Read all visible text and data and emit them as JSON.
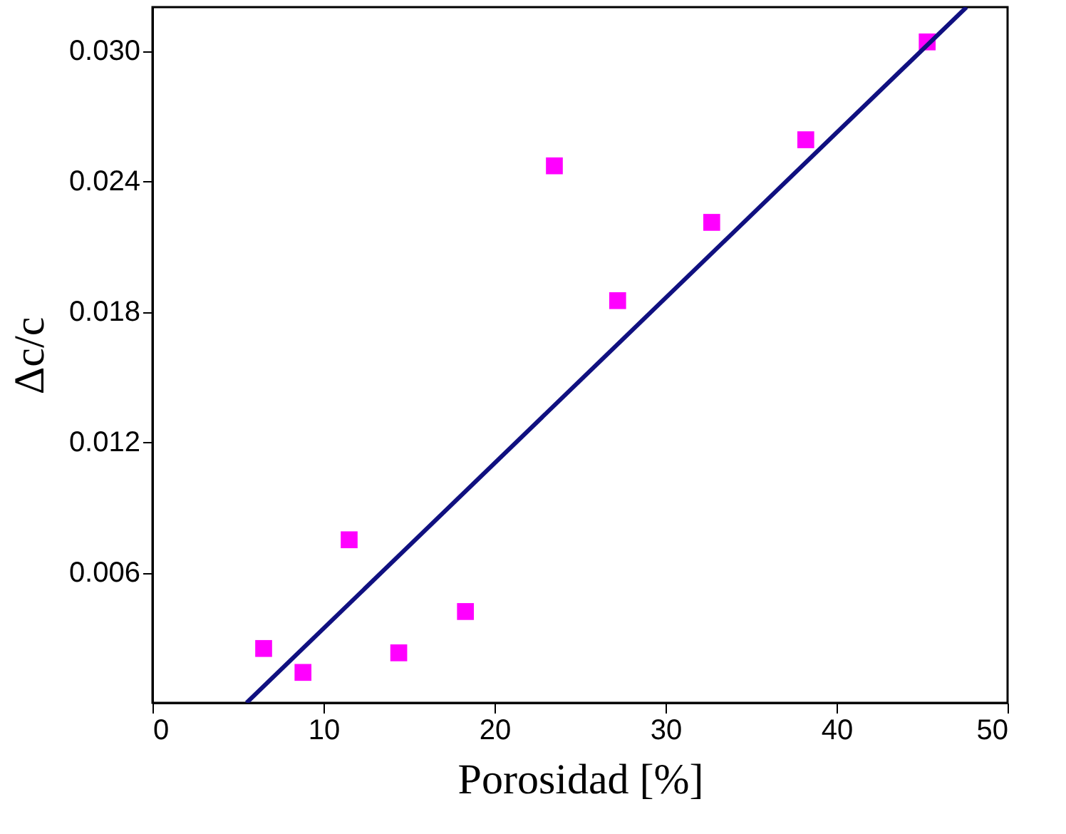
{
  "chart_data": {
    "type": "scatter",
    "xlabel": "Porosidad [%]",
    "ylabel": "Δc/c",
    "x": [
      6.5,
      8.8,
      11.5,
      14.4,
      18.3,
      23.5,
      27.2,
      32.7,
      38.2,
      45.3
    ],
    "series": [
      {
        "color": "#ff00ff",
        "marker": "square",
        "values": [
          0.0025,
          0.0014,
          0.0075,
          0.0023,
          0.0042,
          0.0247,
          0.0185,
          0.0221,
          0.0259,
          0.0304
        ]
      },
      {
        "type": "line",
        "color": "#101080",
        "x": [
          5.5,
          47.6
        ],
        "values": [
          0,
          0.032
        ],
        "line_style": "solid",
        "marker": "none"
      }
    ],
    "xlim": [
      0,
      50
    ],
    "ylim": [
      0,
      0.032
    ],
    "xticks": [
      0,
      10,
      20,
      30,
      40,
      50
    ],
    "yticks": [
      {
        "value": 0.006,
        "label": "0.006"
      },
      {
        "value": 0.012,
        "label": "0.012"
      },
      {
        "value": 0.018,
        "label": "0.018"
      },
      {
        "value": 0.024,
        "label": "0.024"
      },
      {
        "value": 0.03,
        "label": "0.030"
      }
    ],
    "grid": false
  }
}
